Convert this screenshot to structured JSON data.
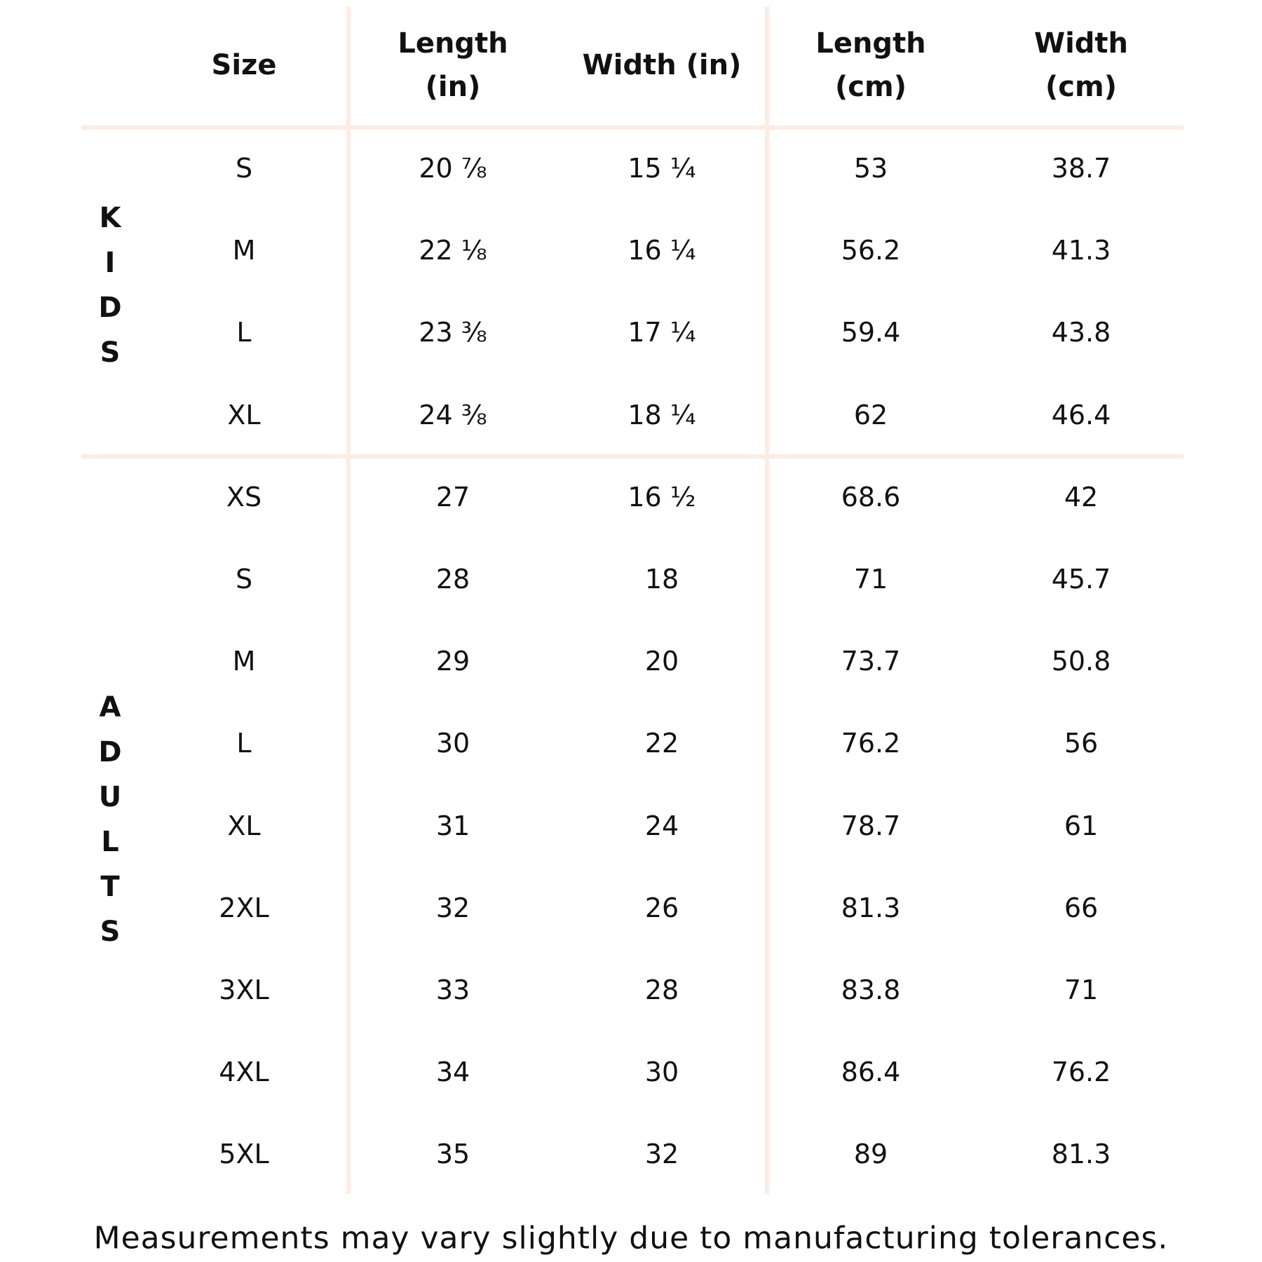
{
  "table": {
    "header": [
      "Size",
      "Length\n(in)",
      "Width (in)",
      "Length\n(cm)",
      "Width\n(cm)"
    ],
    "groups": [
      {
        "label": "KIDS",
        "rows": [
          [
            "S",
            "20 ⅞",
            "15 ¼",
            "53",
            "38.7"
          ],
          [
            "M",
            "22 ⅛",
            "16 ¼",
            "56.2",
            "41.3"
          ],
          [
            "L",
            "23 ⅜",
            "17 ¼",
            "59.4",
            "43.8"
          ],
          [
            "XL",
            "24 ⅜",
            "18 ¼",
            "62",
            "46.4"
          ]
        ]
      },
      {
        "label": "ADULTS",
        "rows": [
          [
            "XS",
            "27",
            "16 ½",
            "68.6",
            "42"
          ],
          [
            "S",
            "28",
            "18",
            "71",
            "45.7"
          ],
          [
            "M",
            "29",
            "20",
            "73.7",
            "50.8"
          ],
          [
            "L",
            "30",
            "22",
            "76.2",
            "56"
          ],
          [
            "XL",
            "31",
            "24",
            "78.7",
            "61"
          ],
          [
            "2XL",
            "32",
            "26",
            "81.3",
            "66"
          ],
          [
            "3XL",
            "33",
            "28",
            "83.8",
            "71"
          ],
          [
            "4XL",
            "34",
            "30",
            "86.4",
            "76.2"
          ],
          [
            "5XL",
            "35",
            "32",
            "89",
            "81.3"
          ]
        ]
      }
    ]
  },
  "footnote": "Measurements may vary slightly due to manufacturing tolerances."
}
